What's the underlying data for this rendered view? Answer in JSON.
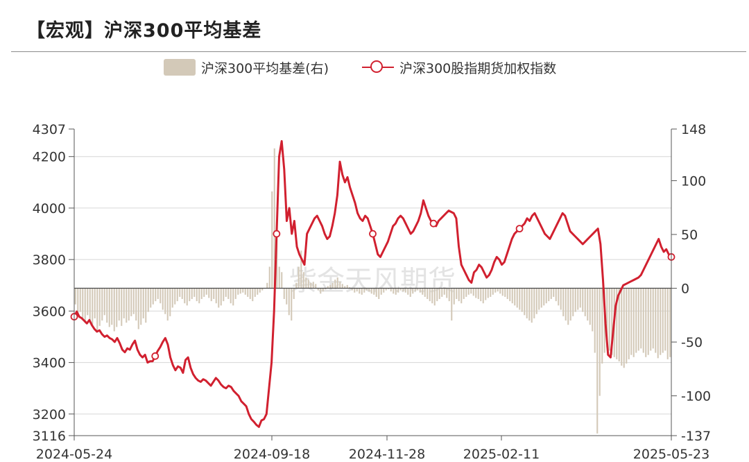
{
  "title": "【宏观】沪深300平均基差",
  "watermark": "紫金天风期货",
  "legend": {
    "basis_label": "沪深300平均基差(右)",
    "index_label": "沪深300股指期货加权指数"
  },
  "colors": {
    "basis": "#d3c9b8",
    "index": "#d1202f",
    "grid": "#d6d6d6"
  },
  "chart_data": {
    "type": "bar+line",
    "title": "【宏观】沪深300平均基差",
    "x_tick_labels": [
      "2024-05-24",
      "2024-09-18",
      "2024-11-28",
      "2025-02-11",
      "2025-05-23"
    ],
    "y_left": {
      "min": 3116,
      "max": 4307,
      "ticks": [
        3116,
        3200,
        3400,
        3600,
        3800,
        4000,
        4200,
        4307
      ]
    },
    "y_right": {
      "min": -137,
      "max": 148,
      "ticks": [
        -137,
        -100,
        -50,
        0,
        50,
        100,
        148
      ]
    },
    "grid": true,
    "legend_position": "top-center",
    "series": [
      {
        "name": "沪深300股指期货加权指数",
        "type": "line",
        "axis": "left",
        "values": [
          3578,
          3598,
          3578,
          3572,
          3562,
          3552,
          3565,
          3545,
          3530,
          3520,
          3525,
          3510,
          3500,
          3505,
          3495,
          3490,
          3480,
          3495,
          3475,
          3450,
          3440,
          3455,
          3450,
          3470,
          3485,
          3450,
          3430,
          3420,
          3430,
          3400,
          3405,
          3405,
          3425,
          3445,
          3460,
          3480,
          3495,
          3470,
          3420,
          3390,
          3370,
          3385,
          3380,
          3360,
          3410,
          3420,
          3380,
          3355,
          3340,
          3330,
          3325,
          3335,
          3330,
          3320,
          3310,
          3325,
          3340,
          3330,
          3315,
          3305,
          3300,
          3310,
          3305,
          3290,
          3280,
          3270,
          3250,
          3240,
          3230,
          3200,
          3180,
          3170,
          3158,
          3150,
          3175,
          3180,
          3200,
          3300,
          3400,
          3600,
          3900,
          4200,
          4260,
          4150,
          3950,
          4000,
          3900,
          3950,
          3850,
          3820,
          3800,
          3780,
          3900,
          3920,
          3940,
          3960,
          3970,
          3950,
          3930,
          3900,
          3880,
          3890,
          3930,
          3980,
          4050,
          4180,
          4130,
          4100,
          4120,
          4080,
          4050,
          4020,
          3980,
          3960,
          3950,
          3970,
          3960,
          3930,
          3900,
          3860,
          3820,
          3810,
          3830,
          3850,
          3870,
          3900,
          3930,
          3940,
          3960,
          3970,
          3960,
          3940,
          3920,
          3900,
          3910,
          3930,
          3950,
          3980,
          4030,
          4000,
          3970,
          3950,
          3940,
          3930,
          3950,
          3960,
          3970,
          3980,
          3990,
          3985,
          3980,
          3960,
          3850,
          3780,
          3760,
          3740,
          3720,
          3710,
          3750,
          3760,
          3780,
          3770,
          3750,
          3730,
          3740,
          3760,
          3790,
          3810,
          3800,
          3780,
          3790,
          3820,
          3850,
          3880,
          3900,
          3910,
          3920,
          3930,
          3940,
          3960,
          3950,
          3970,
          3980,
          3960,
          3940,
          3920,
          3900,
          3890,
          3880,
          3900,
          3920,
          3940,
          3960,
          3980,
          3970,
          3940,
          3910,
          3900,
          3890,
          3880,
          3870,
          3860,
          3870,
          3880,
          3890,
          3900,
          3910,
          3920,
          3860,
          3720,
          3550,
          3430,
          3420,
          3520,
          3620,
          3660,
          3680,
          3700,
          3705,
          3710,
          3715,
          3720,
          3725,
          3730,
          3740,
          3760,
          3780,
          3800,
          3820,
          3840,
          3860,
          3880,
          3850,
          3830,
          3840,
          3820,
          3810
        ],
        "marker_indices": [
          0,
          48,
          121,
          178,
          214,
          265,
          356
        ]
      },
      {
        "name": "沪深300平均基差(右)",
        "type": "bar",
        "axis": "right",
        "values": [
          -15,
          -25,
          -22,
          -28,
          -32,
          -25,
          -30,
          -35,
          -28,
          -40,
          -35,
          -30,
          -25,
          -32,
          -36,
          -34,
          -40,
          -36,
          -30,
          -35,
          -28,
          -32,
          -30,
          -26,
          -24,
          -30,
          -38,
          -34,
          -28,
          -32,
          -22,
          -18,
          -15,
          -12,
          -10,
          -14,
          -20,
          -24,
          -30,
          -26,
          -18,
          -15,
          -12,
          -8,
          -10,
          -14,
          -16,
          -12,
          -10,
          -8,
          -12,
          -14,
          -10,
          -8,
          -6,
          -9,
          -12,
          -10,
          -14,
          -18,
          -16,
          -12,
          -8,
          -10,
          -14,
          -16,
          -10,
          -6,
          -5,
          -4,
          -6,
          -8,
          -10,
          -12,
          -8,
          -6,
          -4,
          -2,
          0,
          5,
          20,
          90,
          130,
          60,
          20,
          15,
          -10,
          -15,
          -25,
          -30,
          -10,
          5,
          20,
          35,
          15,
          10,
          8,
          5,
          6,
          4,
          -2,
          -5,
          -3,
          -1,
          2,
          3,
          5,
          8,
          10,
          6,
          4,
          2,
          3,
          1,
          -2,
          -4,
          -3,
          -5,
          -6,
          -4,
          -2,
          -3,
          -5,
          -6,
          -8,
          -10,
          -6,
          -4,
          -2,
          -1,
          -3,
          -5,
          -6,
          -4,
          -2,
          -3,
          -4,
          -6,
          -8,
          -5,
          -3,
          -2,
          -4,
          -6,
          -8,
          -10,
          -12,
          -14,
          -16,
          -12,
          -10,
          -8,
          -6,
          -9,
          -12,
          -30,
          -15,
          -10,
          -12,
          -14,
          -10,
          -8,
          -6,
          -5,
          -7,
          -9,
          -10,
          -12,
          -14,
          -11,
          -9,
          -8,
          -6,
          -4,
          -3,
          -5,
          -7,
          -8,
          -10,
          -12,
          -14,
          -16,
          -18,
          -20,
          -22,
          -25,
          -28,
          -30,
          -32,
          -28,
          -24,
          -20,
          -18,
          -16,
          -14,
          -12,
          -10,
          -8,
          -12,
          -16,
          -20,
          -26,
          -30,
          -34,
          -30,
          -26,
          -22,
          -20,
          -18,
          -22,
          -26,
          -30,
          -34,
          -40,
          -60,
          -135,
          -100,
          -70,
          -60,
          -55,
          -58,
          -62,
          -64,
          -66,
          -68,
          -72,
          -74,
          -70,
          -66,
          -62,
          -64,
          -60,
          -58,
          -56,
          -60,
          -64,
          -62,
          -58,
          -56,
          -60,
          -65,
          -62,
          -60,
          -58,
          -66,
          -64
        ]
      }
    ]
  }
}
